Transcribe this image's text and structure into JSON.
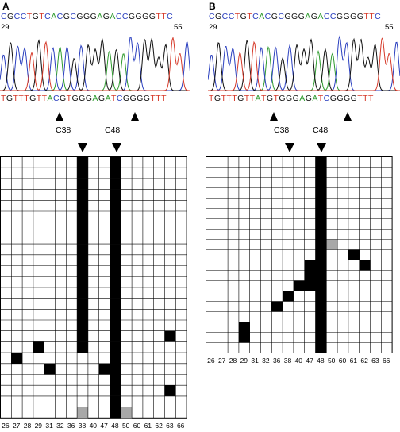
{
  "panels": [
    {
      "letter": "A",
      "ref_sequence": "CGCCTGTCACGCGGGAGACCGGGGTTC",
      "ref_start": "29",
      "ref_end": "55",
      "read_sequence": "TGTTTGTTACGTGGGAGATCGGGGTTT",
      "cpg_labels": [
        "C38",
        "C48"
      ],
      "columns": [
        "26",
        "27",
        "28",
        "29",
        "31",
        "32",
        "36",
        "38",
        "40",
        "47",
        "48",
        "50",
        "60",
        "61",
        "62",
        "63",
        "66"
      ],
      "rows": 24,
      "black_cells": [
        [
          7,
          0
        ],
        [
          7,
          1
        ],
        [
          7,
          2
        ],
        [
          7,
          3
        ],
        [
          7,
          4
        ],
        [
          7,
          5
        ],
        [
          7,
          6
        ],
        [
          7,
          7
        ],
        [
          7,
          8
        ],
        [
          7,
          9
        ],
        [
          7,
          10
        ],
        [
          7,
          11
        ],
        [
          7,
          12
        ],
        [
          7,
          13
        ],
        [
          7,
          14
        ],
        [
          7,
          15
        ],
        [
          7,
          16
        ],
        [
          7,
          17
        ],
        [
          10,
          0
        ],
        [
          10,
          1
        ],
        [
          10,
          2
        ],
        [
          10,
          3
        ],
        [
          10,
          4
        ],
        [
          10,
          5
        ],
        [
          10,
          6
        ],
        [
          10,
          7
        ],
        [
          10,
          8
        ],
        [
          10,
          9
        ],
        [
          10,
          10
        ],
        [
          10,
          11
        ],
        [
          10,
          12
        ],
        [
          10,
          13
        ],
        [
          10,
          14
        ],
        [
          10,
          15
        ],
        [
          10,
          16
        ],
        [
          10,
          17
        ],
        [
          10,
          18
        ],
        [
          10,
          19
        ],
        [
          10,
          20
        ],
        [
          10,
          21
        ],
        [
          10,
          22
        ],
        [
          10,
          23
        ],
        [
          15,
          16
        ],
        [
          3,
          17
        ],
        [
          1,
          18
        ],
        [
          4,
          19
        ],
        [
          9,
          19
        ],
        [
          15,
          21
        ]
      ],
      "gray_cells": [
        [
          7,
          23
        ],
        [
          11,
          23
        ]
      ]
    },
    {
      "letter": "B",
      "ref_sequence": "CGCCTGTCACGCGGGAGACCGGGGTTC",
      "ref_start": "29",
      "ref_end": "55",
      "read_sequence": "TGTTTGTTATGTGGGAGATCGGGGTTT",
      "cpg_labels": [
        "C38",
        "C48"
      ],
      "columns": [
        "26",
        "27",
        "28",
        "29",
        "31",
        "32",
        "36",
        "38",
        "40",
        "47",
        "48",
        "50",
        "60",
        "61",
        "62",
        "63",
        "66"
      ],
      "rows": 19,
      "black_cells": [
        [
          10,
          0
        ],
        [
          10,
          1
        ],
        [
          10,
          2
        ],
        [
          10,
          3
        ],
        [
          10,
          4
        ],
        [
          10,
          5
        ],
        [
          10,
          6
        ],
        [
          10,
          7
        ],
        [
          10,
          8
        ],
        [
          10,
          9
        ],
        [
          10,
          10
        ],
        [
          10,
          11
        ],
        [
          10,
          12
        ],
        [
          10,
          13
        ],
        [
          10,
          14
        ],
        [
          10,
          15
        ],
        [
          10,
          16
        ],
        [
          10,
          17
        ],
        [
          10,
          18
        ],
        [
          9,
          10
        ],
        [
          9,
          11
        ],
        [
          9,
          12
        ],
        [
          8,
          12
        ],
        [
          7,
          13
        ],
        [
          6,
          14
        ],
        [
          3,
          16
        ],
        [
          3,
          17
        ],
        [
          13,
          9
        ],
        [
          14,
          10
        ]
      ],
      "gray_cells": [
        [
          11,
          8
        ]
      ]
    }
  ],
  "base_colors": {
    "A": "#2e9b2e",
    "C": "#2a3fbf",
    "G": "#111111",
    "T": "#d63a2a"
  }
}
